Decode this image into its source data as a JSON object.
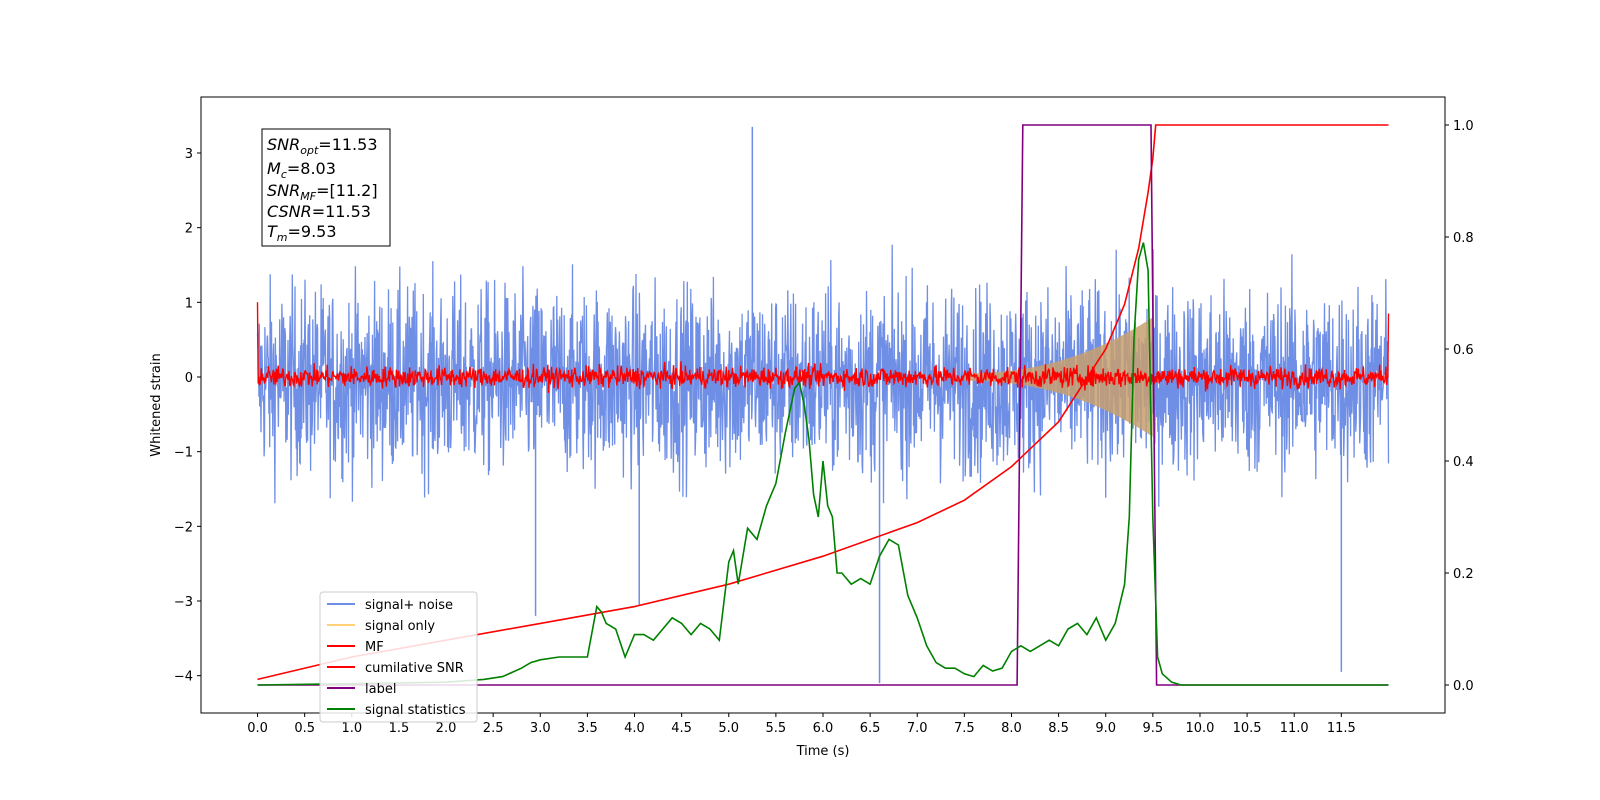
{
  "chart_data": {
    "type": "line",
    "xlabel": "Time (s)",
    "ylabel": "Whitened strain",
    "xlim": [
      -0.6,
      12.6
    ],
    "ylim": [
      -4.5,
      3.75
    ],
    "ylim_right": [
      -0.05,
      1.05
    ],
    "x_ticks": [
      "0.0",
      "0.5",
      "1.0",
      "1.5",
      "2.0",
      "2.5",
      "3.0",
      "3.5",
      "4.0",
      "4.5",
      "5.0",
      "5.5",
      "6.0",
      "6.5",
      "7.0",
      "7.5",
      "8.0",
      "8.5",
      "9.0",
      "9.5",
      "10.0",
      "10.5",
      "11.0",
      "11.5"
    ],
    "y_ticks_left": [
      "3",
      "2",
      "1",
      "0",
      "−1",
      "−2",
      "−3",
      "−4"
    ],
    "y_ticks_right": [
      "1.0",
      "0.8",
      "0.6",
      "0.4",
      "0.2",
      "0.0"
    ],
    "info_box": {
      "snr_opt": "=11.53",
      "mc": "=8.03",
      "snr_mf": "=[11.2]",
      "csnr": "=11.53",
      "tm": "=9.53"
    },
    "legend": {
      "placement": "lower-left",
      "entries": [
        {
          "label": "signal+ noise",
          "color": "#6f8fe6"
        },
        {
          "label": "signal only",
          "color": "#ffd27a"
        },
        {
          "label": "MF",
          "color": "#ff0000"
        },
        {
          "label": "cumilative SNR",
          "color": "#ff0000"
        },
        {
          "label": "label",
          "color": "#800080"
        },
        {
          "label": "signal statistics",
          "color": "#008000"
        }
      ]
    },
    "series": [
      {
        "name": "signal+ noise",
        "axis": "left",
        "color": "#6f8fe6",
        "x_range": [
          0.0,
          12.0
        ],
        "band": [
          -1.2,
          1.1
        ],
        "spikes": [
          [
            5.25,
            3.35
          ],
          [
            6.6,
            -4.1
          ],
          [
            11.5,
            -3.95
          ],
          [
            2.95,
            -3.2
          ],
          [
            4.05,
            -3.05
          ]
        ]
      },
      {
        "name": "signal only",
        "axis": "left",
        "color": "#ffd27a",
        "x_range": [
          7.5,
          9.5
        ],
        "envelope_end": 0.75
      },
      {
        "name": "MF",
        "axis": "left",
        "color": "#ff0000",
        "x_range": [
          0.0,
          12.0
        ],
        "start": 1.0,
        "end": 0.85,
        "band": [
          -0.1,
          0.1
        ]
      },
      {
        "name": "cumilative SNR",
        "axis": "right",
        "color": "#ff0000",
        "x": [
          0.0,
          1.0,
          2.0,
          3.0,
          4.0,
          5.0,
          6.0,
          7.0,
          7.5,
          8.0,
          8.5,
          9.0,
          9.2,
          9.35,
          9.45,
          9.5,
          9.53,
          12.0
        ],
        "y": [
          0.01,
          0.05,
          0.08,
          0.11,
          0.14,
          0.18,
          0.23,
          0.29,
          0.33,
          0.39,
          0.47,
          0.6,
          0.68,
          0.78,
          0.88,
          0.94,
          1.0,
          1.0
        ]
      },
      {
        "name": "label",
        "axis": "right",
        "color": "#800080",
        "x": [
          0.0,
          8.06,
          8.12,
          9.48,
          9.54,
          12.0
        ],
        "y": [
          0.0,
          0.0,
          1.0,
          1.0,
          0.0,
          0.0
        ]
      },
      {
        "name": "signal statistics",
        "axis": "right",
        "color": "#008000",
        "x": [
          0.0,
          2.0,
          2.4,
          2.6,
          2.8,
          2.9,
          3.0,
          3.2,
          3.4,
          3.5,
          3.6,
          3.65,
          3.7,
          3.8,
          3.9,
          4.0,
          4.1,
          4.2,
          4.3,
          4.4,
          4.5,
          4.6,
          4.7,
          4.8,
          4.9,
          5.0,
          5.05,
          5.1,
          5.2,
          5.3,
          5.4,
          5.5,
          5.6,
          5.7,
          5.75,
          5.8,
          5.85,
          5.9,
          5.95,
          6.0,
          6.05,
          6.1,
          6.15,
          6.2,
          6.3,
          6.4,
          6.5,
          6.6,
          6.7,
          6.8,
          6.9,
          7.0,
          7.1,
          7.2,
          7.3,
          7.4,
          7.5,
          7.6,
          7.7,
          7.8,
          7.9,
          8.0,
          8.1,
          8.2,
          8.3,
          8.4,
          8.5,
          8.6,
          8.7,
          8.8,
          8.9,
          9.0,
          9.1,
          9.2,
          9.25,
          9.3,
          9.35,
          9.4,
          9.45,
          9.5,
          9.55,
          9.6,
          9.7,
          9.8,
          10.0,
          11.0,
          11.5,
          12.0
        ],
        "y": [
          0.0,
          0.005,
          0.01,
          0.015,
          0.03,
          0.04,
          0.045,
          0.05,
          0.05,
          0.05,
          0.14,
          0.13,
          0.11,
          0.1,
          0.05,
          0.09,
          0.09,
          0.08,
          0.1,
          0.12,
          0.11,
          0.09,
          0.11,
          0.1,
          0.08,
          0.22,
          0.24,
          0.18,
          0.28,
          0.26,
          0.32,
          0.36,
          0.45,
          0.53,
          0.54,
          0.5,
          0.44,
          0.34,
          0.3,
          0.4,
          0.32,
          0.3,
          0.2,
          0.2,
          0.18,
          0.19,
          0.18,
          0.23,
          0.26,
          0.25,
          0.16,
          0.12,
          0.07,
          0.04,
          0.03,
          0.03,
          0.02,
          0.015,
          0.035,
          0.025,
          0.03,
          0.06,
          0.07,
          0.06,
          0.07,
          0.08,
          0.07,
          0.1,
          0.11,
          0.09,
          0.12,
          0.08,
          0.11,
          0.18,
          0.3,
          0.62,
          0.76,
          0.79,
          0.74,
          0.3,
          0.05,
          0.02,
          0.005,
          0.0,
          0.0,
          0.0,
          0.0,
          0.0
        ]
      }
    ]
  }
}
